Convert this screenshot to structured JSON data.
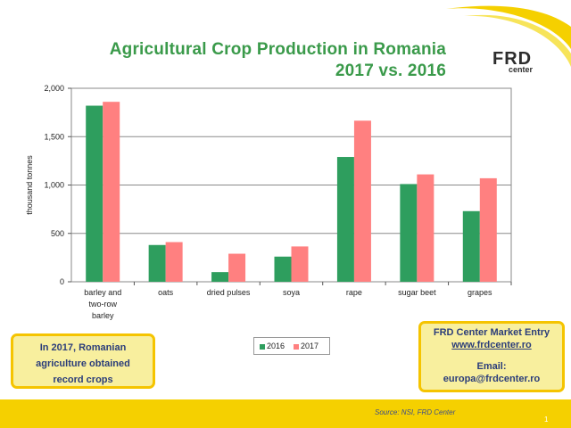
{
  "header": {
    "title_line1": "Agricultural Crop Production in Romania",
    "title_line2": "2017 vs. 2016"
  },
  "logo": {
    "main": "FRD",
    "sub": "center"
  },
  "chart_data": {
    "type": "bar",
    "categories": [
      "barley and two-row barley",
      "oats",
      "dried pulses",
      "soya",
      "rape",
      "sugar beet",
      "grapes"
    ],
    "category_label_lines": [
      [
        "barley and",
        "two-row",
        "barley"
      ],
      [
        "oats"
      ],
      [
        "dried pulses"
      ],
      [
        "soya"
      ],
      [
        "rape"
      ],
      [
        "sugar beet"
      ],
      [
        "grapes"
      ]
    ],
    "series": [
      {
        "name": "2016",
        "color": "#2e9e5e",
        "values": [
          1820,
          380,
          100,
          260,
          1290,
          1010,
          730
        ]
      },
      {
        "name": "2017",
        "color": "#ff8080",
        "values": [
          1860,
          410,
          290,
          365,
          1665,
          1110,
          1070
        ]
      }
    ],
    "ylabel": "thousand tonnes",
    "ylim": [
      0,
      2000
    ],
    "yticks": [
      0,
      500,
      1000,
      1500,
      2000
    ],
    "ytick_labels": [
      "0",
      "500",
      "1,000",
      "1,500",
      "2,000"
    ],
    "grid": true,
    "legend_position": "bottom"
  },
  "callout": {
    "line1": "In 2017, Romanian",
    "line2": "agriculture obtained",
    "line3": "record crops"
  },
  "contact": {
    "title": "FRD Center Market Entry",
    "url": "www.frdcenter.ro",
    "email_label": "Email:",
    "email": "europa@frdcenter.ro"
  },
  "footer": {
    "source": "Source: NSI, FRD Center",
    "page_number": "1"
  },
  "colors": {
    "accent_yellow": "#f5d000",
    "title_green": "#3a9a4a",
    "box_text": "#2b3d7a"
  }
}
